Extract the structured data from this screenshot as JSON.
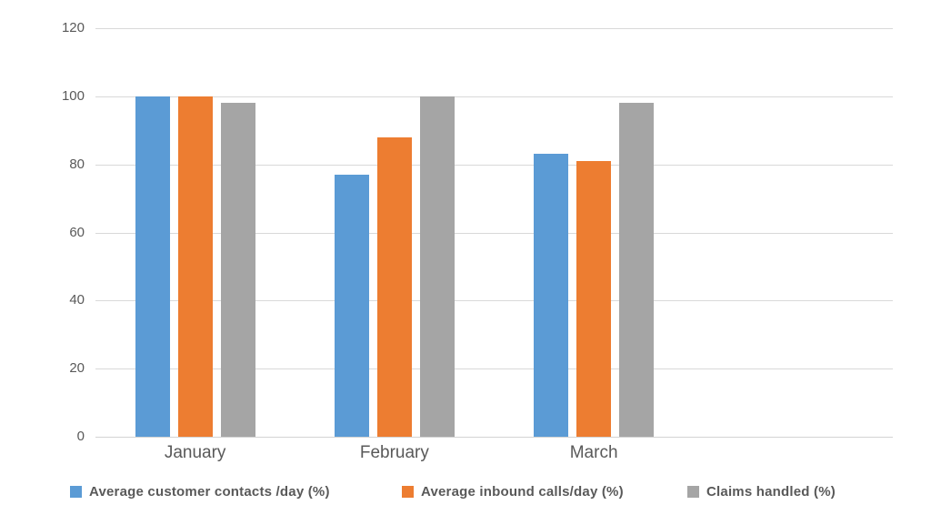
{
  "chart_data": {
    "type": "bar",
    "categories": [
      "January",
      "February",
      "March"
    ],
    "series": [
      {
        "name": "Average customer contacts /day (%)",
        "color": "#5B9BD5",
        "values": [
          100,
          77,
          83
        ]
      },
      {
        "name": "Average inbound calls/day (%)",
        "color": "#ED7D31",
        "values": [
          100,
          88,
          81
        ]
      },
      {
        "name": "Claims handled (%)",
        "color": "#A5A5A5",
        "values": [
          98,
          100,
          98
        ]
      }
    ],
    "yticks": [
      0,
      20,
      40,
      60,
      80,
      100,
      120
    ],
    "ylim": [
      0,
      120
    ],
    "grid": true,
    "legend_position": "bottom",
    "empty_trailing_slots": 1
  },
  "colors": {
    "background": "#FFFFFF",
    "gridline": "#D9D9D9",
    "axis_line": "#D3D3D3",
    "tick_label": "#595959"
  }
}
